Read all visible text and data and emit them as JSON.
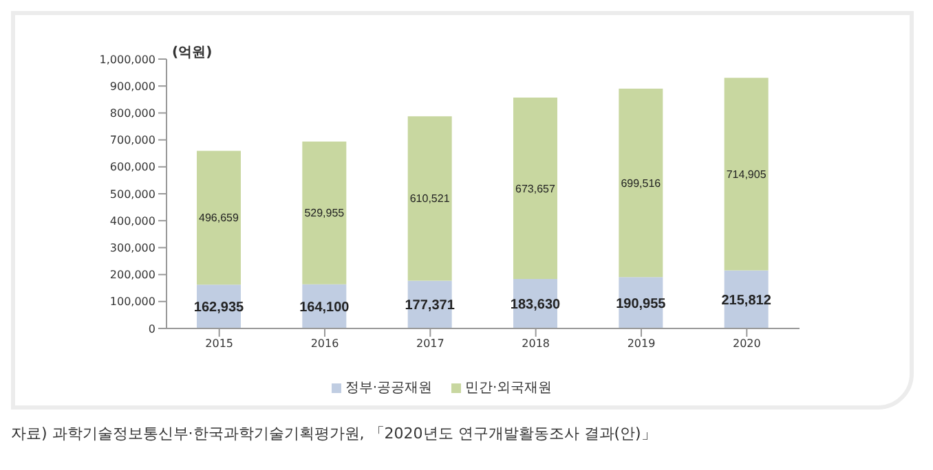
{
  "chart_data": {
    "type": "bar",
    "stacked": true,
    "ylabel": "(억원)",
    "categories": [
      "2015",
      "2016",
      "2017",
      "2018",
      "2019",
      "2020"
    ],
    "series": [
      {
        "name": "정부·공공재원",
        "color": "#c0cde2",
        "values": [
          162935,
          164100,
          177371,
          183630,
          190955,
          215812
        ],
        "value_labels": [
          "162,935",
          "164,100",
          "177,371",
          "183,630",
          "190,955",
          "215,812"
        ]
      },
      {
        "name": "민간·외국재원",
        "color": "#c8d7a0",
        "values": [
          496659,
          529955,
          610521,
          673657,
          699516,
          714905
        ],
        "value_labels": [
          "496,659",
          "529,955",
          "610,521",
          "673,657",
          "699,516",
          "714,905"
        ]
      }
    ],
    "ylim": [
      0,
      1000000
    ],
    "yticks": [
      0,
      {
        "value": 100000,
        "label": "100,000"
      },
      {
        "value": 200000,
        "label": "200,000"
      },
      {
        "value": 300000,
        "label": "300,000"
      },
      {
        "value": 400000,
        "label": "400,000"
      },
      {
        "value": 500000,
        "label": "500,000"
      },
      {
        "value": 600000,
        "label": "600,000"
      },
      {
        "value": 700000,
        "label": "700,000"
      },
      {
        "value": 800000,
        "label": "800,000"
      },
      {
        "value": 900000,
        "label": "900,000"
      },
      {
        "value": 1000000,
        "label": "1,000,000"
      }
    ],
    "grid": false,
    "legend": "bottom",
    "annotations": [
      "자료) 과학기술정보통신부·한국과학기술기획평가원, 「2020년도 연구개발활동조사 결과(안)」"
    ]
  }
}
